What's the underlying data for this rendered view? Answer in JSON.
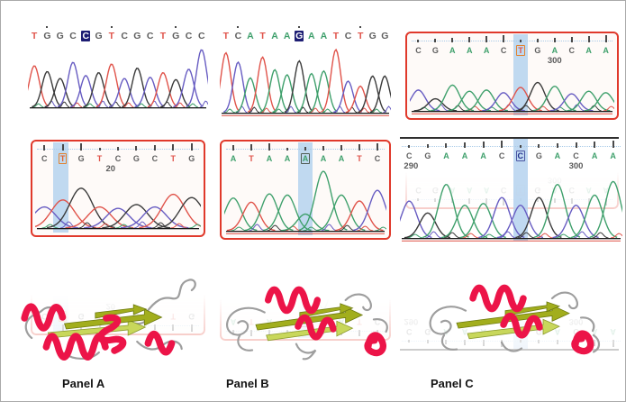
{
  "figure": {
    "background": "#ffffff",
    "border_color": "#a9a9a9"
  },
  "colors": {
    "peak": {
      "A": "#3fa06c",
      "C": "#675cc2",
      "G": "#3b3b3b",
      "T": "#e0534a"
    },
    "letter": {
      "A": "#3fa06c",
      "C": "#5f5f5f",
      "G": "#5f5f5f",
      "T": "#e0534a"
    },
    "highlight_band": "#b5d2ee",
    "navy_box": "#1d1d73",
    "red_border": "#e0392b",
    "quality_tick": "#4a4a4a",
    "quality_line": "#a9cbe8",
    "position_label": "#5a5a5a",
    "baseline": "#1a1a1a",
    "baseline_red": "#e05348"
  },
  "chart_data": [
    {
      "id": "a-top",
      "type": "line",
      "subtype": "sanger-chromatogram",
      "panel": "A",
      "sequence": "TGGCCGTCGCTGCC",
      "highlight_index": 4,
      "highlight_style": "navy-fill",
      "highlight_letter_color": "#ffffff",
      "bordered": false,
      "positions": [],
      "peak_heights": [
        0.72,
        0.62,
        0.5,
        0.78,
        0.55,
        0.6,
        0.75,
        0.5,
        0.68,
        0.52,
        0.6,
        0.48,
        0.66,
        1.0
      ]
    },
    {
      "id": "b-top",
      "type": "line",
      "subtype": "sanger-chromatogram",
      "panel": "B",
      "sequence": "TCATAAGAATCTGG",
      "highlight_index": 6,
      "highlight_style": "navy-fill",
      "highlight_letter_color": "#ffffff",
      "bordered": false,
      "positions": [],
      "peak_heights": [
        0.95,
        0.8,
        0.55,
        0.88,
        0.68,
        0.6,
        0.82,
        0.62,
        0.66,
        1.0,
        0.5,
        0.42,
        0.58,
        0.58
      ]
    },
    {
      "id": "c-top",
      "type": "line",
      "subtype": "sanger-chromatogram",
      "panel": "C",
      "sequence": "CGAAACTGACAA",
      "highlight_index": 6,
      "highlight_style": "orange-outline",
      "highlight_box_color": "#e2822e",
      "highlight_letter_color": "#e0534a",
      "bordered": true,
      "positions": [
        {
          "at": 8,
          "text": "300"
        }
      ],
      "peak_heights": [
        0.55,
        0.32,
        0.68,
        0.52,
        0.55,
        0.48,
        0.62,
        0.75,
        0.65,
        0.45,
        0.52,
        0.48
      ]
    },
    {
      "id": "a-bottom",
      "type": "line",
      "subtype": "sanger-chromatogram",
      "panel": "A",
      "sequence": "CTGTCGCTG",
      "highlight_index": 1,
      "highlight_style": "orange-outline",
      "highlight_box_color": "#e2822e",
      "highlight_letter_color": "#e0632e",
      "bordered": true,
      "positions": [
        {
          "at": 3.6,
          "text": "20"
        }
      ],
      "peak_heights": [
        0.45,
        0.6,
        0.85,
        0.45,
        0.42,
        0.5,
        0.45,
        0.72,
        0.65
      ]
    },
    {
      "id": "b-bottom",
      "type": "line",
      "subtype": "sanger-chromatogram",
      "panel": "B",
      "sequence": "ATAAAAATC",
      "highlight_index": 4,
      "highlight_style": "dark-outline",
      "highlight_box_color": "#4f5b52",
      "highlight_letter_color": "#3fa06c",
      "bordered": true,
      "positions": [],
      "peak_heights": [
        0.55,
        0.48,
        0.62,
        0.6,
        0.28,
        1.0,
        0.6,
        0.5,
        0.68
      ]
    },
    {
      "id": "c-bottom",
      "type": "line",
      "subtype": "sanger-chromatogram",
      "panel": "C",
      "sequence": "CGAAACCGACAA",
      "highlight_index": 6,
      "highlight_style": "navy-outline",
      "highlight_box_color": "#4a55a2",
      "highlight_letter_color": "#23328e",
      "bordered": false,
      "positions": [
        {
          "at": 0.1,
          "text": "290"
        },
        {
          "at": 9,
          "text": "300"
        }
      ],
      "peak_heights": [
        0.62,
        0.42,
        0.9,
        0.55,
        0.58,
        0.68,
        0.55,
        0.68,
        0.9,
        0.55,
        0.72,
        0.95
      ]
    }
  ],
  "proteins": [
    {
      "id": "protein-a",
      "variant": "A",
      "helix_color": "#ec1448",
      "sheet_color": "#a2ae1d",
      "sheet_color_light": "#c8d75b",
      "loop_color": "#9e9e9e"
    },
    {
      "id": "protein-b",
      "variant": "B",
      "helix_color": "#ec1448",
      "sheet_color": "#a2ae1d",
      "sheet_color_light": "#c8d75b",
      "loop_color": "#9e9e9e"
    },
    {
      "id": "protein-c",
      "variant": "C",
      "helix_color": "#ec1448",
      "sheet_color": "#a2ae1d",
      "sheet_color_light": "#c8d75b",
      "loop_color": "#9e9e9e"
    }
  ],
  "panel_labels": [
    "Panel A",
    "Panel B",
    "Panel C"
  ]
}
